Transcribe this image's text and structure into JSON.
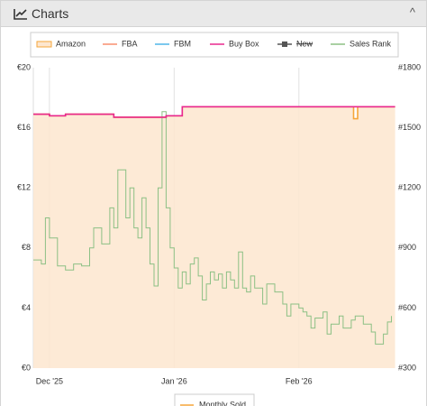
{
  "header": {
    "title": "Charts"
  },
  "chart_data": {
    "type": "line",
    "xlim": [
      0,
      90
    ],
    "xticks": [
      {
        "value": 4,
        "label": "Dec '25"
      },
      {
        "value": 35,
        "label": "Jan '26"
      },
      {
        "value": 66,
        "label": "Feb '26"
      }
    ],
    "ylim": [
      0,
      20
    ],
    "yticks": [
      {
        "value": 0,
        "label": "€0"
      },
      {
        "value": 4,
        "label": "€4"
      },
      {
        "value": 8,
        "label": "€8"
      },
      {
        "value": 12,
        "label": "€12"
      },
      {
        "value": 16,
        "label": "€16"
      },
      {
        "value": 20,
        "label": "€20"
      }
    ],
    "y2lim": [
      300,
      1800
    ],
    "y2ticks": [
      {
        "value": 300,
        "label": "#300"
      },
      {
        "value": 600,
        "label": "#600"
      },
      {
        "value": 900,
        "label": "#900"
      },
      {
        "value": 1200,
        "label": "#1200"
      },
      {
        "value": 1500,
        "label": "#1500"
      },
      {
        "value": 1800,
        "label": "#1800"
      }
    ],
    "grid": true,
    "series": [
      {
        "name": "Amazon",
        "color": "#f5a63a",
        "fill": "#fde6cf",
        "step": true,
        "x": [
          0,
          4,
          8,
          20,
          33,
          37,
          79.6,
          80.6,
          89.9
        ],
        "values": [
          16.9,
          16.8,
          16.9,
          16.7,
          16.8,
          17.4,
          16.6,
          17.4,
          17.4
        ]
      },
      {
        "name": "FBA",
        "color": "#f98f6f",
        "step": true,
        "x": [],
        "values": []
      },
      {
        "name": "FBM",
        "color": "#4fb6e8",
        "step": true,
        "x": [],
        "values": []
      },
      {
        "name": "Buy Box",
        "color": "#e8288e",
        "step": true,
        "x": [
          0,
          4,
          8,
          20,
          33,
          37,
          89.9
        ],
        "values": [
          16.9,
          16.8,
          16.9,
          16.7,
          16.8,
          17.4,
          17.4
        ]
      },
      {
        "name": "New",
        "color": "#555555",
        "step": true,
        "hidden": true,
        "x": [],
        "values": []
      },
      {
        "name": "Sales Rank",
        "color": "#8cc084",
        "step": true,
        "axis": "y2",
        "x": [
          0,
          2,
          3,
          4,
          6,
          8,
          10,
          12,
          14,
          15,
          17,
          19,
          20,
          21,
          23,
          24,
          25,
          26,
          27,
          28,
          29,
          30,
          31,
          32,
          33,
          34,
          35,
          36,
          37,
          38,
          39,
          40,
          41,
          42,
          43,
          44,
          45,
          46,
          47,
          48,
          49,
          50,
          51,
          52,
          53,
          54,
          55,
          57,
          58,
          60,
          62,
          63,
          64,
          65,
          66,
          67,
          68,
          69,
          70,
          72,
          73,
          74,
          76,
          77,
          79,
          80,
          82,
          84,
          85,
          87,
          88,
          89
        ],
        "values": [
          840,
          820,
          1050,
          950,
          810,
          790,
          820,
          810,
          900,
          1000,
          920,
          1100,
          1000,
          1290,
          1050,
          1200,
          1000,
          950,
          1150,
          1000,
          820,
          710,
          1200,
          1580,
          1100,
          900,
          800,
          700,
          780,
          720,
          820,
          850,
          760,
          640,
          720,
          780,
          740,
          770,
          700,
          780,
          740,
          700,
          880,
          700,
          680,
          760,
          700,
          620,
          720,
          680,
          620,
          560,
          620,
          620,
          600,
          580,
          560,
          500,
          550,
          580,
          470,
          520,
          560,
          500,
          540,
          560,
          520,
          480,
          420,
          470,
          530,
          560
        ]
      }
    ],
    "extra_legend": "Monthly Sold"
  }
}
